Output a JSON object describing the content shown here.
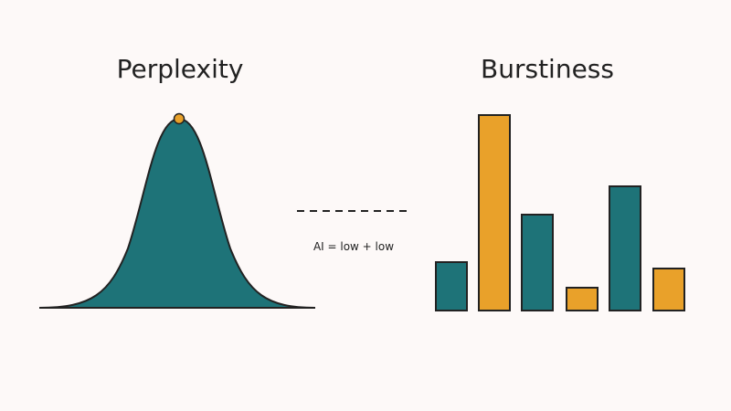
{
  "left_panel": {
    "title": "Perplexity"
  },
  "right_panel": {
    "title": "Burstiness"
  },
  "center": {
    "label": "AI = low + low"
  }
}
